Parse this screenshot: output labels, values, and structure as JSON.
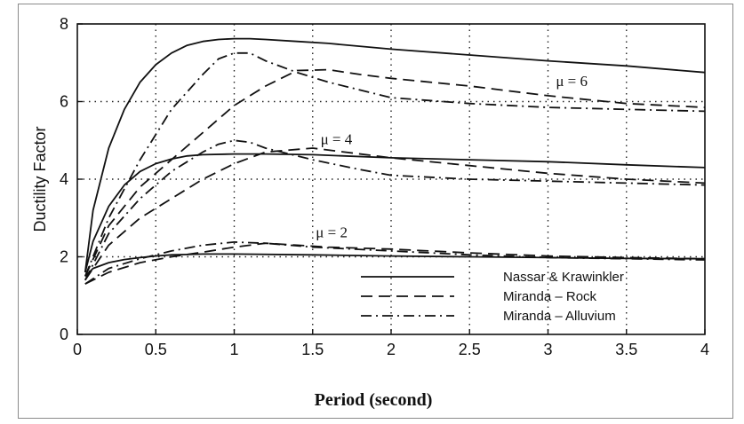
{
  "chart_data": {
    "type": "line",
    "title": "",
    "xlabel": "Period (second)",
    "ylabel": "Ductility Factor",
    "xlim": [
      0,
      4
    ],
    "ylim": [
      0,
      8
    ],
    "xticks": [
      0,
      0.5,
      1,
      1.5,
      2,
      2.5,
      3,
      3.5,
      4
    ],
    "xtick_labels": [
      "0",
      "0.5",
      "1",
      "1.5",
      "2",
      "2.5",
      "3",
      "3.5",
      "4"
    ],
    "yticks": [
      0,
      2,
      4,
      6,
      8
    ],
    "ytick_labels": [
      "0",
      "2",
      "4",
      "6",
      "8"
    ],
    "grid": true,
    "legend_position": "bottom-right",
    "annotations": [
      {
        "text": "μ = 6",
        "x": 3.05,
        "y": 6.4
      },
      {
        "text": "μ = 4",
        "x": 1.55,
        "y": 4.9
      },
      {
        "text": "μ = 2",
        "x": 1.52,
        "y": 2.5
      }
    ],
    "series": [
      {
        "name": "Nassar & Krawinkler",
        "style": "solid",
        "group": "μ = 6",
        "x": [
          0.05,
          0.1,
          0.2,
          0.3,
          0.4,
          0.5,
          0.6,
          0.7,
          0.8,
          0.9,
          1.0,
          1.1,
          1.2,
          1.4,
          1.6,
          2.0,
          2.5,
          3.0,
          3.5,
          4.0
        ],
        "y": [
          1.6,
          3.2,
          4.8,
          5.8,
          6.5,
          6.95,
          7.25,
          7.45,
          7.55,
          7.6,
          7.62,
          7.62,
          7.6,
          7.55,
          7.5,
          7.35,
          7.2,
          7.05,
          6.92,
          6.75
        ]
      },
      {
        "name": "Miranda - Rock",
        "style": "dashed",
        "group": "μ = 6",
        "x": [
          0.05,
          0.2,
          0.4,
          0.6,
          0.8,
          1.0,
          1.2,
          1.4,
          1.6,
          1.8,
          2.0,
          2.5,
          3.0,
          3.5,
          4.0
        ],
        "y": [
          1.5,
          2.8,
          3.8,
          4.5,
          5.2,
          5.9,
          6.4,
          6.8,
          6.82,
          6.7,
          6.6,
          6.4,
          6.15,
          5.95,
          5.85
        ]
      },
      {
        "name": "Miranda - Alluvium",
        "style": "dashdot",
        "group": "μ = 6",
        "x": [
          0.05,
          0.2,
          0.4,
          0.6,
          0.8,
          0.9,
          1.0,
          1.1,
          1.2,
          1.4,
          1.6,
          1.8,
          2.0,
          2.5,
          3.0,
          3.5,
          4.0
        ],
        "y": [
          1.5,
          3.0,
          4.5,
          5.8,
          6.7,
          7.1,
          7.25,
          7.25,
          7.05,
          6.75,
          6.5,
          6.3,
          6.1,
          5.95,
          5.85,
          5.8,
          5.75
        ]
      },
      {
        "name": "Nassar & Krawinkler",
        "style": "solid",
        "group": "μ = 4",
        "x": [
          0.05,
          0.1,
          0.2,
          0.3,
          0.4,
          0.5,
          0.6,
          0.7,
          0.8,
          1.0,
          1.2,
          1.5,
          2.0,
          2.5,
          3.0,
          3.5,
          4.0
        ],
        "y": [
          1.6,
          2.4,
          3.3,
          3.85,
          4.2,
          4.4,
          4.52,
          4.6,
          4.63,
          4.65,
          4.65,
          4.63,
          4.55,
          4.5,
          4.45,
          4.37,
          4.3
        ]
      },
      {
        "name": "Miranda - Rock",
        "style": "dashed",
        "group": "μ = 4",
        "x": [
          0.05,
          0.2,
          0.4,
          0.6,
          0.8,
          1.0,
          1.2,
          1.5,
          2.0,
          2.5,
          3.0,
          3.5,
          4.0
        ],
        "y": [
          1.4,
          2.3,
          3.0,
          3.5,
          4.0,
          4.4,
          4.7,
          4.8,
          4.55,
          4.35,
          4.15,
          4.0,
          3.9
        ]
      },
      {
        "name": "Miranda - Alluvium",
        "style": "dashdot",
        "group": "μ = 4",
        "x": [
          0.05,
          0.2,
          0.4,
          0.6,
          0.8,
          0.9,
          1.0,
          1.1,
          1.2,
          1.5,
          1.8,
          2.0,
          2.5,
          3.0,
          3.5,
          4.0
        ],
        "y": [
          1.4,
          2.6,
          3.5,
          4.2,
          4.7,
          4.9,
          5.0,
          4.95,
          4.8,
          4.5,
          4.25,
          4.1,
          4.0,
          3.95,
          3.9,
          3.85
        ]
      },
      {
        "name": "Nassar & Krawinkler",
        "style": "solid",
        "group": "μ = 2",
        "x": [
          0.05,
          0.1,
          0.2,
          0.3,
          0.4,
          0.5,
          0.6,
          0.7,
          0.8,
          1.0,
          1.5,
          2.0,
          2.5,
          3.0,
          3.5,
          4.0
        ],
        "y": [
          1.5,
          1.7,
          1.85,
          1.93,
          1.98,
          2.02,
          2.05,
          2.06,
          2.07,
          2.07,
          2.05,
          2.02,
          2.0,
          1.98,
          1.96,
          1.95
        ]
      },
      {
        "name": "Miranda - Rock",
        "style": "dashed",
        "group": "μ = 2",
        "x": [
          0.05,
          0.2,
          0.4,
          0.6,
          0.8,
          1.0,
          1.2,
          1.4,
          1.6,
          2.0,
          2.5,
          3.0,
          3.5,
          4.0
        ],
        "y": [
          1.3,
          1.6,
          1.85,
          2.0,
          2.12,
          2.25,
          2.35,
          2.3,
          2.25,
          2.2,
          2.1,
          2.02,
          1.98,
          1.95
        ]
      },
      {
        "name": "Miranda - Alluvium",
        "style": "dashdot",
        "group": "μ = 2",
        "x": [
          0.05,
          0.2,
          0.4,
          0.6,
          0.8,
          1.0,
          1.2,
          1.5,
          2.0,
          2.5,
          3.0,
          3.5,
          4.0
        ],
        "y": [
          1.3,
          1.7,
          1.95,
          2.15,
          2.3,
          2.38,
          2.35,
          2.25,
          2.15,
          2.05,
          1.98,
          1.95,
          1.92
        ]
      }
    ],
    "legend": [
      {
        "label": "Nassar & Krawinkler",
        "style": "solid"
      },
      {
        "label": "Miranda – Rock",
        "style": "dashed"
      },
      {
        "label": "Miranda – Alluvium",
        "style": "dashdot"
      }
    ]
  }
}
